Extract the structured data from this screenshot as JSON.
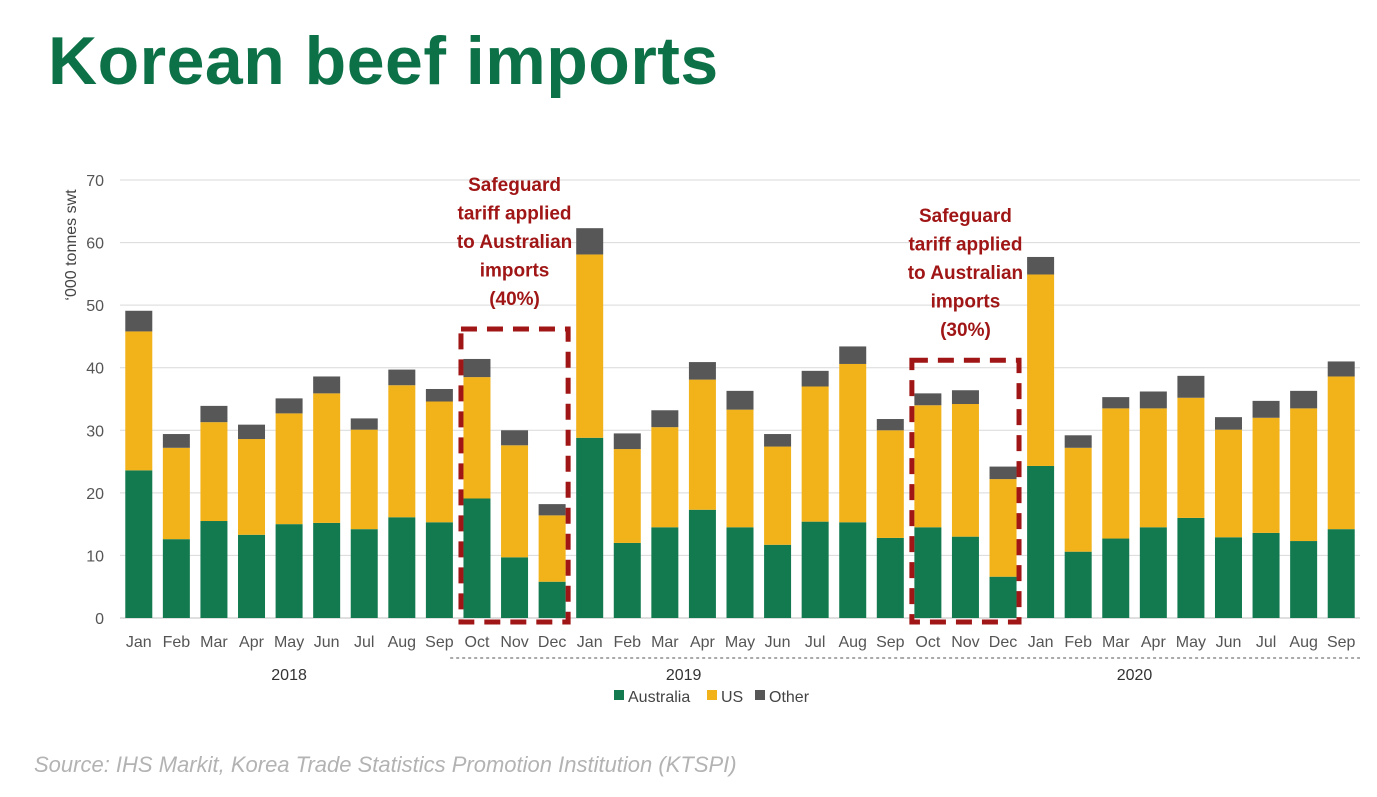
{
  "title": "Korean beef imports",
  "source": "Source: IHS Markit, Korea Trade Statistics Promotion Institution (KTSPI)",
  "colors": {
    "Australia": "#137a50",
    "US": "#f2b21a",
    "Other": "#575757",
    "annotation": "#a01616",
    "title": "#0d7148"
  },
  "chart_data": {
    "type": "bar",
    "stacked": true,
    "ylabel": "‘000 tonnes swt",
    "ylim": [
      0,
      70
    ],
    "yticks": [
      0,
      10,
      20,
      30,
      40,
      50,
      60,
      70
    ],
    "grid": true,
    "legend_position": "bottom",
    "categories": [
      "Jan",
      "Feb",
      "Mar",
      "Apr",
      "May",
      "Jun",
      "Jul",
      "Aug",
      "Sep",
      "Oct",
      "Nov",
      "Dec",
      "Jan",
      "Feb",
      "Mar",
      "Apr",
      "May",
      "Jun",
      "Jul",
      "Aug",
      "Sep",
      "Oct",
      "Nov",
      "Dec",
      "Jan",
      "Feb",
      "Mar",
      "Apr",
      "May",
      "Jun",
      "Jul",
      "Aug",
      "Sep"
    ],
    "year_groups": [
      {
        "label": "2018",
        "start": 0,
        "end": 9
      },
      {
        "label": "2019",
        "start": 9,
        "end": 21
      },
      {
        "label": "2020",
        "start": 21,
        "end": 33
      }
    ],
    "series": [
      {
        "name": "Australia",
        "values": [
          23.6,
          12.6,
          15.5,
          13.3,
          15.0,
          15.2,
          14.2,
          16.1,
          15.3,
          19.1,
          9.7,
          5.8,
          28.8,
          12.0,
          14.5,
          17.3,
          14.5,
          11.7,
          15.4,
          15.3,
          12.8,
          14.5,
          13.0,
          6.6,
          24.3,
          10.6,
          12.7,
          14.5,
          16.0,
          12.9,
          13.6,
          12.3,
          14.2
        ]
      },
      {
        "name": "US",
        "values": [
          22.2,
          14.6,
          15.8,
          15.3,
          17.7,
          20.7,
          15.9,
          21.1,
          19.3,
          19.4,
          17.9,
          10.6,
          29.3,
          15.0,
          16.0,
          20.8,
          18.8,
          15.7,
          21.6,
          25.3,
          17.2,
          19.5,
          21.2,
          15.6,
          30.6,
          16.6,
          20.8,
          19.0,
          19.2,
          17.2,
          18.4,
          21.2,
          24.4
        ]
      },
      {
        "name": "Other",
        "values": [
          3.3,
          2.2,
          2.6,
          2.3,
          2.4,
          2.7,
          1.8,
          2.5,
          2.0,
          2.9,
          2.4,
          1.8,
          4.2,
          2.5,
          2.7,
          2.8,
          3.0,
          2.0,
          2.5,
          2.8,
          1.8,
          1.9,
          2.2,
          2.0,
          2.8,
          2.0,
          1.8,
          2.7,
          3.5,
          2.0,
          2.7,
          2.8,
          2.4
        ]
      }
    ],
    "annotations": [
      {
        "lines": [
          "Safeguard",
          "tariff applied",
          "to Australian",
          "imports",
          "(40%)"
        ],
        "box_categories": [
          9,
          11
        ]
      },
      {
        "lines": [
          "Safeguard",
          "tariff applied",
          "to Australian",
          "imports",
          "(30%)"
        ],
        "box_categories": [
          21,
          23
        ]
      }
    ]
  }
}
